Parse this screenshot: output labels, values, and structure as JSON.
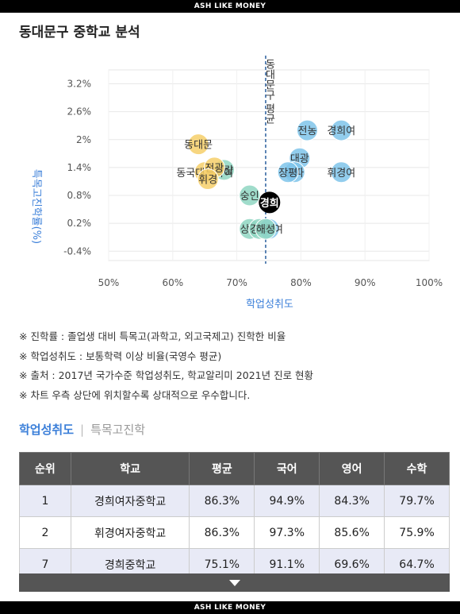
{
  "banner": {
    "top": "ASH LIKE MONEY",
    "bottom": "ASH LIKE MONEY"
  },
  "page_title": "동대문구 중학교 분석",
  "chart_data": {
    "type": "scatter",
    "xlabel": "학업성취도",
    "ylabel": "특목고진학률(%)",
    "xlim": [
      50,
      100
    ],
    "ylim": [
      -0.6,
      3.5
    ],
    "x_ticks": [
      "50%",
      "60%",
      "70%",
      "80%",
      "90%",
      "100%"
    ],
    "x_tick_values": [
      50,
      60,
      70,
      80,
      90,
      100
    ],
    "y_ticks": [
      "3.2%",
      "2.6%",
      "2%",
      "1.4%",
      "0.8%",
      "0.2%",
      "-0.4%"
    ],
    "y_tick_values": [
      3.2,
      2.6,
      2,
      1.4,
      0.8,
      0.2,
      -0.4
    ],
    "reference_line": {
      "x": 74.5,
      "label": "동대문구 평균"
    },
    "colors": {
      "high": "#7fc4ea",
      "mid": "#8fd6c2",
      "low": "#f6cf6a",
      "self": "#000000"
    },
    "points": [
      {
        "label": "경희여",
        "x": 86.3,
        "y": 2.2,
        "group": "high"
      },
      {
        "label": "전농",
        "x": 81.0,
        "y": 2.2,
        "group": "high"
      },
      {
        "label": "대광",
        "x": 79.8,
        "y": 1.6,
        "group": "high"
      },
      {
        "label": "휘경여",
        "x": 86.3,
        "y": 1.3,
        "group": "high"
      },
      {
        "label": "홍파",
        "x": 79.0,
        "y": 1.3,
        "group": "high"
      },
      {
        "label": "장평",
        "x": 78.0,
        "y": 1.3,
        "group": "high"
      },
      {
        "label": "경희",
        "x": 75.1,
        "y": 0.65,
        "group": "self"
      },
      {
        "label": "숭인",
        "x": 72.0,
        "y": 0.8,
        "group": "mid"
      },
      {
        "label": "청량",
        "x": 68.0,
        "y": 1.35,
        "group": "mid"
      },
      {
        "label": "상원",
        "x": 72.0,
        "y": 0.08,
        "group": "mid"
      },
      {
        "label": "경희",
        "x": 73.5,
        "y": 0.08,
        "group": "mid"
      },
      {
        "label": "동대문",
        "x": 64.0,
        "y": 1.9,
        "group": "low"
      },
      {
        "label": "동국대부속여",
        "x": 65.0,
        "y": 1.3,
        "group": "low"
      },
      {
        "label": "전광",
        "x": 66.5,
        "y": 1.4,
        "group": "low"
      },
      {
        "label": "휘경",
        "x": 65.5,
        "y": 1.15,
        "group": "low"
      },
      {
        "label": "정화여",
        "x": 75.0,
        "y": 0.08,
        "group": "high"
      },
      {
        "label": "해성",
        "x": 74.5,
        "y": 0.08,
        "group": "mid"
      }
    ]
  },
  "notes": [
    "※ 진학률 : 졸업생 대비 특목고(과학고, 외고국제고) 진학한 비율",
    "※ 학업성취도 : 보통학력 이상 비율(국영수 평균)",
    "※ 출처 : 2017년 국가수준 학업성취도, 학교알리미 2021년 진로 현황",
    "※ 차트 우측 상단에 위치할수록 상대적으로 우수합니다."
  ],
  "tabs": {
    "active": "학업성취도",
    "inactive": "특목고진학"
  },
  "table": {
    "headers": [
      "순위",
      "학교",
      "평균",
      "국어",
      "영어",
      "수학"
    ],
    "rows": [
      {
        "rank": "1",
        "school": "경희여자중학교",
        "avg": "86.3%",
        "kor": "94.9%",
        "eng": "84.3%",
        "math": "79.7%"
      },
      {
        "rank": "2",
        "school": "휘경여자중학교",
        "avg": "86.3%",
        "kor": "97.3%",
        "eng": "85.6%",
        "math": "75.9%"
      },
      {
        "rank": "7",
        "school": "경희중학교",
        "avg": "75.1%",
        "kor": "91.1%",
        "eng": "69.6%",
        "math": "64.7%"
      }
    ]
  }
}
